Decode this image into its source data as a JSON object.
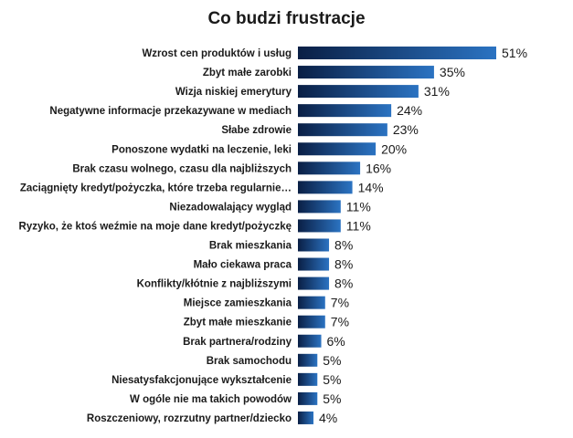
{
  "chart_data": {
    "type": "bar",
    "orientation": "horizontal",
    "title": "Co budzi frustracje",
    "categories": [
      "Wzrost cen produktów i usług",
      "Zbyt małe zarobki",
      "Wizja niskiej emerytury",
      "Negatywne informacje przekazywane w mediach",
      "Słabe zdrowie",
      "Ponoszone wydatki na leczenie, leki",
      "Brak czasu wolnego, czasu dla najbliższych",
      "Zaciągnięty kredyt/pożyczka, które trzeba regularnie…",
      "Niezadowalający wygląd",
      "Ryzyko, że ktoś weźmie na moje dane kredyt/pożyczkę",
      "Brak mieszkania",
      "Mało ciekawa praca",
      "Konflikty/kłótnie z najbliższymi",
      "Miejsce zamieszkania",
      "Zbyt małe mieszkanie",
      "Brak partnera/rodziny",
      "Brak samochodu",
      "Niesatysfakcjonujące wykształcenie",
      "W ogóle nie ma takich powodów",
      "Roszczeniowy, rozrzutny partner/dziecko"
    ],
    "values": [
      51,
      35,
      31,
      24,
      23,
      20,
      16,
      14,
      11,
      11,
      8,
      8,
      8,
      7,
      7,
      6,
      5,
      5,
      5,
      4
    ],
    "data_labels": [
      "51%",
      "35%",
      "31%",
      "24%",
      "23%",
      "20%",
      "16%",
      "14%",
      "11%",
      "11%",
      "8%",
      "8%",
      "8%",
      "7%",
      "7%",
      "6%",
      "5%",
      "5%",
      "5%",
      "4%"
    ],
    "xlim": [
      0,
      51
    ],
    "grid": false,
    "legend": "none",
    "bar_gradient": [
      "#0a1f45",
      "#2b73c2"
    ]
  }
}
